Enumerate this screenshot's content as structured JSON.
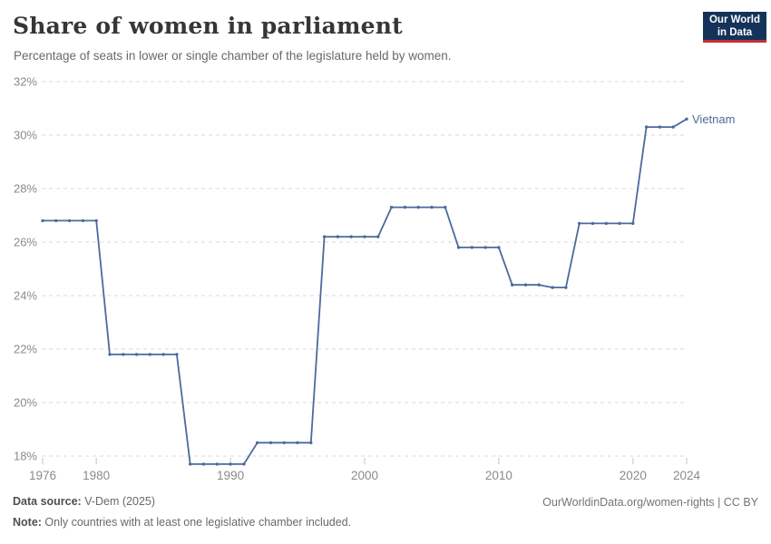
{
  "header": {
    "title": "Share of women in parliament",
    "subtitle": "Percentage of seats in lower or single chamber of the legislature held by women."
  },
  "logo": {
    "line1": "Our World",
    "line2": "in Data",
    "bg_color": "#15335a",
    "stripe_color": "#c52e38"
  },
  "chart_data": {
    "type": "line",
    "title": "Share of women in parliament",
    "xlabel": "",
    "ylabel": "",
    "xlim": [
      1976,
      2024
    ],
    "ylim": [
      18,
      32
    ],
    "grid": "horizontal-dashed",
    "grid_color": "#d9d9d9",
    "tick_color": "#c4c4c4",
    "axis_label_color": "#8a8a8a",
    "x_ticks": [
      1976,
      1980,
      1990,
      2000,
      2010,
      2020,
      2024
    ],
    "y_ticks": [
      18,
      20,
      22,
      24,
      26,
      28,
      30,
      32
    ],
    "y_tick_suffix": "%",
    "series": [
      {
        "name": "Vietnam",
        "color": "#4c6a9c",
        "x": [
          1976,
          1977,
          1978,
          1979,
          1980,
          1981,
          1982,
          1983,
          1984,
          1985,
          1986,
          1987,
          1988,
          1989,
          1990,
          1991,
          1992,
          1993,
          1994,
          1995,
          1996,
          1997,
          1998,
          1999,
          2000,
          2001,
          2002,
          2003,
          2004,
          2005,
          2006,
          2007,
          2008,
          2009,
          2010,
          2011,
          2012,
          2013,
          2014,
          2015,
          2016,
          2017,
          2018,
          2019,
          2020,
          2021,
          2022,
          2023,
          2024
        ],
        "values": [
          26.8,
          26.8,
          26.8,
          26.8,
          26.8,
          21.8,
          21.8,
          21.8,
          21.8,
          21.8,
          21.8,
          17.7,
          17.7,
          17.7,
          17.7,
          17.7,
          18.5,
          18.5,
          18.5,
          18.5,
          18.5,
          26.2,
          26.2,
          26.2,
          26.2,
          26.2,
          27.3,
          27.3,
          27.3,
          27.3,
          27.3,
          25.8,
          25.8,
          25.8,
          25.8,
          24.4,
          24.4,
          24.4,
          24.3,
          24.3,
          26.7,
          26.7,
          26.7,
          26.7,
          26.7,
          30.3,
          30.3,
          30.3,
          30.6
        ]
      }
    ],
    "series_label": "Vietnam",
    "legend_position": "end-of-line"
  },
  "footer": {
    "source_label": "Data source:",
    "source_value": " V-Dem (2025)",
    "note_label": "Note:",
    "note_value": " Only countries with at least one legislative chamber included.",
    "link": "OurWorldinData.org/women-rights | CC BY"
  }
}
